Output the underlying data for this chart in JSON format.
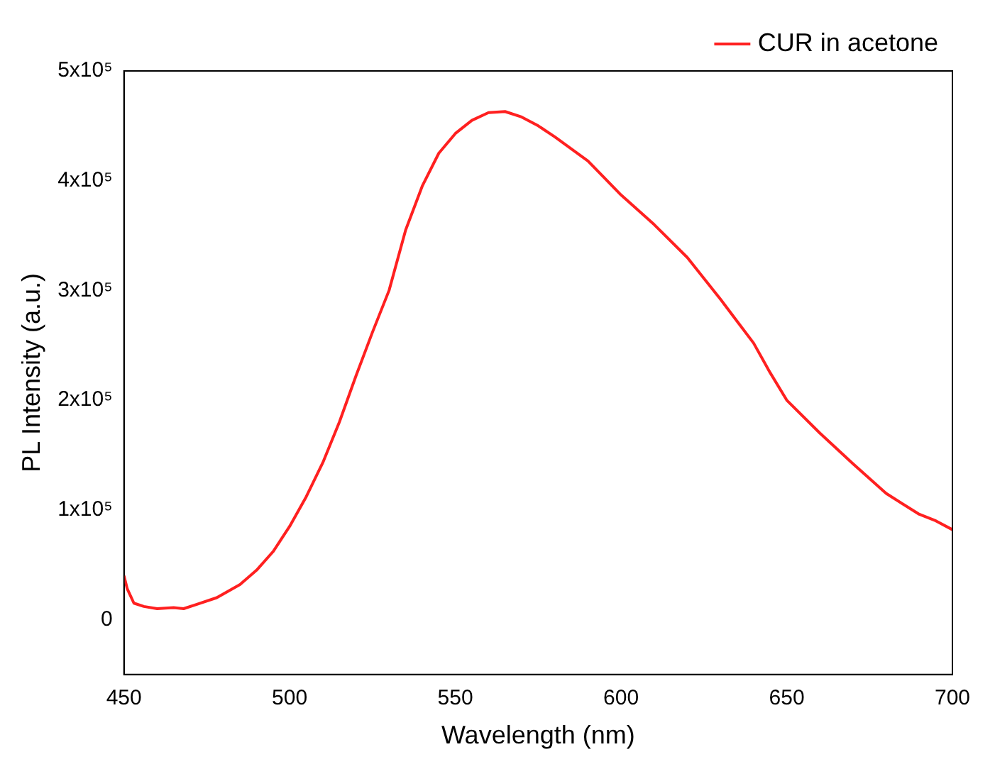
{
  "chart_data": {
    "type": "line",
    "xlabel": "Wavelength (nm)",
    "ylabel": "PL Intensity (a.u.)",
    "xlim": [
      450,
      700
    ],
    "xticks": [
      450,
      500,
      550,
      600,
      650,
      700
    ],
    "ylim": [
      -50000,
      500000
    ],
    "yticks": [
      {
        "value": 0,
        "label": "0"
      },
      {
        "value": 100000,
        "label": "1x10⁵"
      },
      {
        "value": 200000,
        "label": "2x10⁵"
      },
      {
        "value": 300000,
        "label": "3x10⁵"
      },
      {
        "value": 400000,
        "label": "4x10⁵"
      },
      {
        "value": 500000,
        "label": "5x10⁵"
      }
    ],
    "grid": false,
    "legend": "top right",
    "marker": "none",
    "line_style": "solid",
    "series": [
      {
        "name": "CUR in acetone",
        "color": "#ff2020",
        "x": [
          450,
          451,
          453,
          456,
          460,
          465,
          468,
          472,
          478,
          485,
          490,
          495,
          500,
          505,
          510,
          515,
          520,
          525,
          530,
          535,
          540,
          545,
          550,
          555,
          560,
          565,
          570,
          575,
          580,
          590,
          600,
          610,
          620,
          630,
          635,
          640,
          645,
          650,
          660,
          670,
          680,
          690,
          695,
          700
        ],
        "values": [
          40000,
          28000,
          15000,
          12000,
          10000,
          11000,
          10000,
          14000,
          20000,
          32000,
          45000,
          62000,
          85000,
          112000,
          143000,
          180000,
          222000,
          262000,
          300000,
          355000,
          395000,
          425000,
          443000,
          455000,
          462000,
          463000,
          458000,
          450000,
          440000,
          418000,
          387000,
          360000,
          330000,
          292000,
          272000,
          252000,
          225000,
          200000,
          170000,
          142000,
          115000,
          96000,
          90000,
          82000
        ]
      }
    ]
  }
}
